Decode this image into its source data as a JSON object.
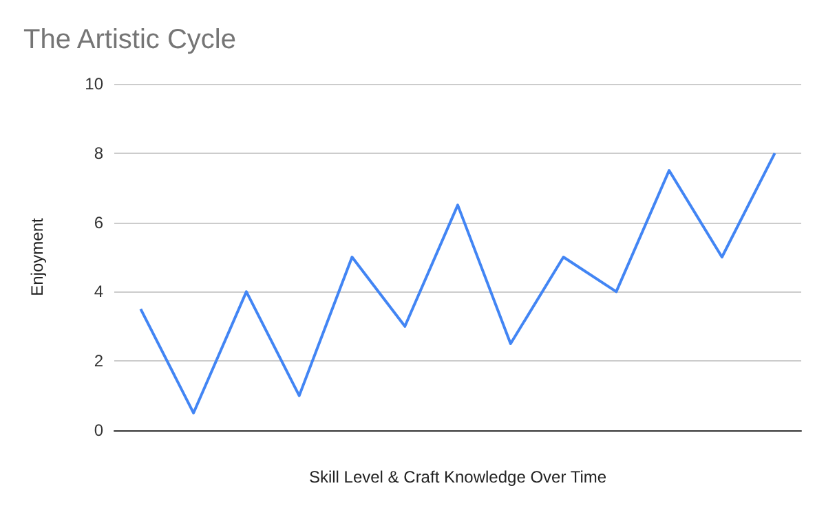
{
  "chart_data": {
    "type": "line",
    "title": "The Artistic Cycle",
    "xlabel": "Skill Level & Craft Knowledge Over Time",
    "ylabel": "Enjoyment",
    "categories": [
      null,
      null,
      null,
      null,
      null,
      null,
      null,
      null,
      null,
      null,
      null,
      null,
      null
    ],
    "series": [
      {
        "color": "#4285f4",
        "values": [
          3.5,
          0.5,
          4,
          1,
          5,
          3,
          6.5,
          2.5,
          5,
          4,
          7.5,
          5,
          8
        ]
      }
    ],
    "ylim": [
      0,
      10
    ],
    "yticks": [
      0,
      2,
      4,
      6,
      8,
      10
    ],
    "grid": "y",
    "marker": "none",
    "line_style": "solid"
  }
}
